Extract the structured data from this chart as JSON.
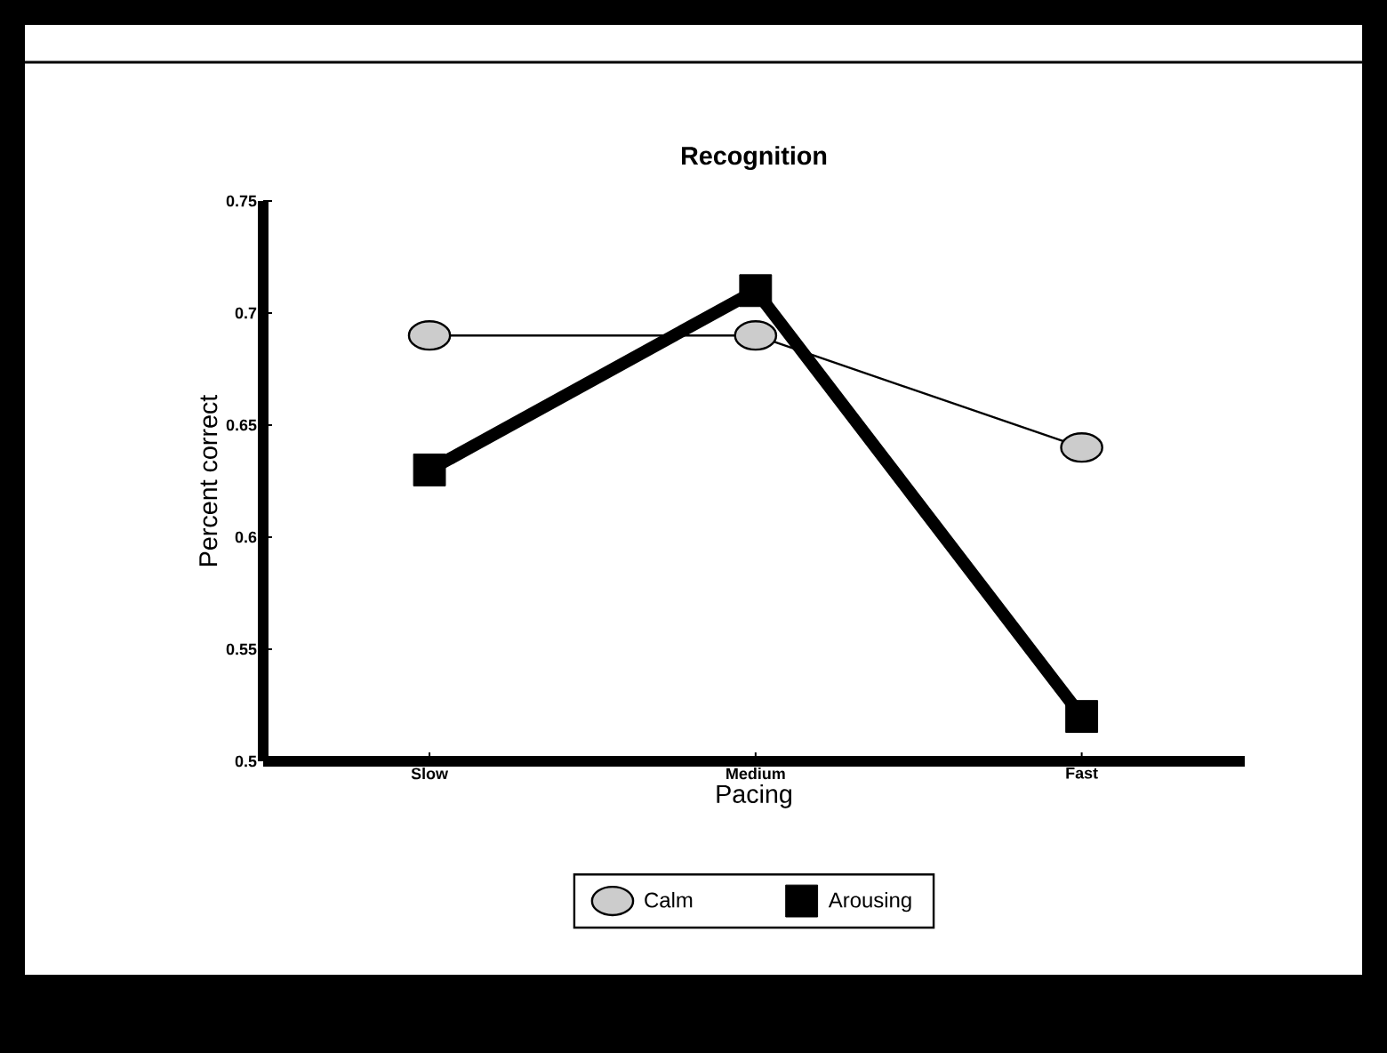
{
  "chart_data": {
    "type": "line",
    "title": "Recognition",
    "xlabel": "Pacing",
    "ylabel": "Percent correct",
    "categories": [
      "Slow",
      "Medium",
      "Fast"
    ],
    "series": [
      {
        "name": "Calm",
        "color": "#000000",
        "marker": "circle",
        "values": [
          0.69,
          0.69,
          0.64
        ]
      },
      {
        "name": "Arousing",
        "color": "#000000",
        "marker": "square",
        "values": [
          0.63,
          0.71,
          0.52
        ]
      }
    ],
    "ylim": [
      0.5,
      0.75
    ],
    "yticks": [
      0.5,
      0.55,
      0.6,
      0.65,
      0.7,
      0.75
    ],
    "grid": false,
    "legend": "bottom"
  }
}
